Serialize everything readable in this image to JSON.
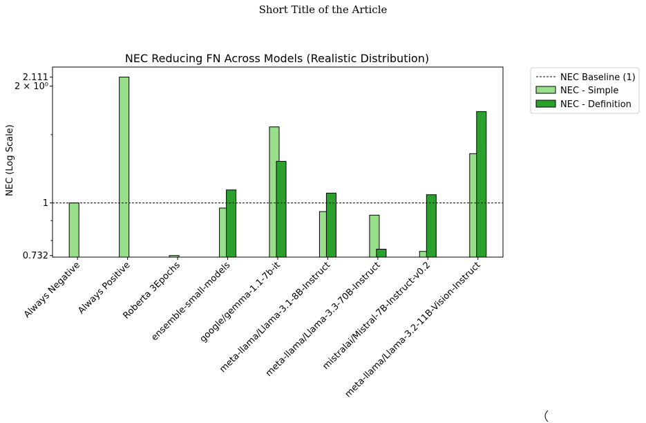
{
  "header": {
    "running_title": "Short Title of the Article"
  },
  "chart_data": {
    "type": "bar",
    "title": "NEC Reducing FN Across Models (Realistic Distribution)",
    "xlabel": "",
    "ylabel": "NEC (Log Scale)",
    "yscale": "log",
    "ylim": [
      0.725,
      2.24
    ],
    "yticks": [
      {
        "value": 0.732,
        "label": "0.732"
      },
      {
        "value": 1,
        "label": "1"
      },
      {
        "value": 2,
        "label": "2 × 10⁰"
      },
      {
        "value": 2.111,
        "label": "2.111"
      }
    ],
    "categories": [
      "Always Negative",
      "Always Positive",
      "Roberta 3Epochs",
      "ensemble-small-models",
      "google/gemma-1.1-7b-it",
      "meta-llama/Llama-3.1-8B-Instruct",
      "meta-llama/Llama-3.3-70B-Instruct",
      "mistralai/Mistral-7B-Instruct-v0.2",
      "meta-llama/Llama-3.2-11B-Vision-Instruct"
    ],
    "baseline": {
      "name": "NEC Baseline (1)",
      "value": 1,
      "style": "dashed",
      "color": "#000000"
    },
    "series": [
      {
        "name": "NEC - Simple",
        "color": "#98df8a",
        "values": [
          1.0,
          2.111,
          0.732,
          0.97,
          1.57,
          0.95,
          0.93,
          0.75,
          1.34
        ]
      },
      {
        "name": "NEC - Definition",
        "color": "#2ca02c",
        "values": [
          null,
          null,
          null,
          1.08,
          1.28,
          1.06,
          0.76,
          1.05,
          1.72
        ]
      }
    ],
    "legend_position": "outside-right",
    "grid": false
  }
}
